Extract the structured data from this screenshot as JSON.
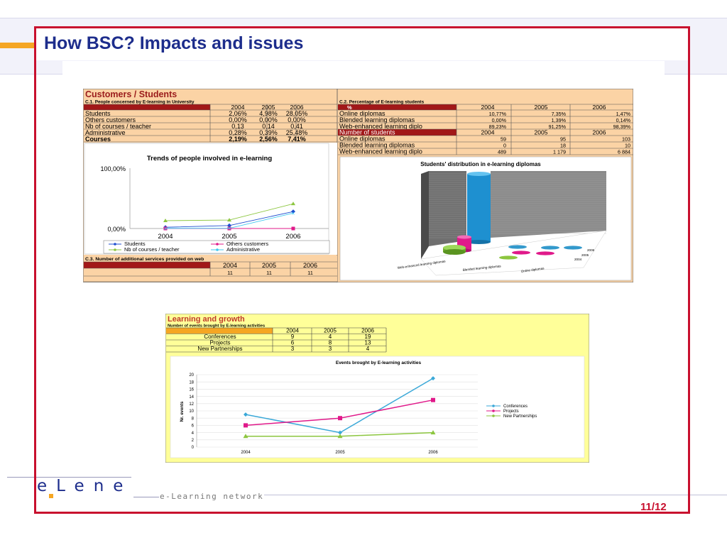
{
  "slide": {
    "title": "How BSC? Impacts and issues",
    "page": "11/12",
    "logo": {
      "text": "eLene",
      "tagline": "e-Learning network"
    }
  },
  "customers": {
    "heading": "Customers / Students",
    "c1_title": "C.1. People concerned by E-learning in University",
    "c1_years": [
      "2004",
      "2005",
      "2006"
    ],
    "c1_rows": [
      {
        "label": "Students",
        "values": [
          "2,06%",
          "4,98%",
          "28,05%"
        ]
      },
      {
        "label": "Others customers",
        "values": [
          "0,00%",
          "0,00%",
          "0,00%"
        ]
      },
      {
        "label": "Nb of courses / teacher",
        "values": [
          "0,13",
          "0,14",
          "0,41"
        ]
      },
      {
        "label": "Administrative",
        "values": [
          "0,28%",
          "0,39%",
          "25,48%"
        ]
      },
      {
        "label": "Courses",
        "values": [
          "2,19%",
          "2,56%",
          "7,41%"
        ]
      }
    ],
    "c2_title": "C.2. Percentage of E-learning students",
    "c2_header": [
      "%",
      "2004",
      "2005",
      "2006"
    ],
    "c2_rows": [
      {
        "label": "Online diplomas",
        "values": [
          "10,77%",
          "7,35%",
          "1,47%"
        ]
      },
      {
        "label": "Blended learning diplomas",
        "values": [
          "0,00%",
          "1,39%",
          "0,14%"
        ]
      },
      {
        "label": "Web-enhanced learning diplo",
        "values": [
          "89,23%",
          "91,25%",
          "98,39%"
        ]
      }
    ],
    "c2_count_header": [
      "Number of students",
      "2004",
      "2005",
      "2006"
    ],
    "c2_count_rows": [
      {
        "label": "Online  diplomas",
        "values": [
          "59",
          "95",
          "103"
        ]
      },
      {
        "label": "Blended learning diplomas",
        "values": [
          "0",
          "18",
          "10"
        ]
      },
      {
        "label": "Web-enhanced learning diplo",
        "values": [
          "489",
          "1 179",
          "6 884"
        ]
      }
    ],
    "c3_title": "C.3. Number of additional services provided on web",
    "c3_years": [
      "2004",
      "2005",
      "2006"
    ],
    "c3_values": [
      "11",
      "11",
      "11"
    ]
  },
  "growth": {
    "heading": "Learning and growth",
    "subtitle": "Number of events brought by E-learning activities",
    "years": [
      "2004",
      "2005",
      "2006"
    ],
    "rows": [
      {
        "label": "Conferences",
        "values": [
          "9",
          "4",
          "19"
        ]
      },
      {
        "label": "Projects",
        "values": [
          "6",
          "8",
          "13"
        ]
      },
      {
        "label": "New Partnerships",
        "values": [
          "3",
          "3",
          "4"
        ]
      }
    ]
  },
  "chart_data": [
    {
      "type": "line",
      "title": "Trends of people involved in e-learning",
      "categories": [
        "2004",
        "2005",
        "2006"
      ],
      "y_tick_labels": [
        "100,00%",
        "0,00%"
      ],
      "ylim": [
        0,
        100
      ],
      "series": [
        {
          "name": "Students",
          "values": [
            2.06,
            4.98,
            28.05
          ],
          "color": "#1f4fd0"
        },
        {
          "name": "Others customers",
          "values": [
            0,
            0,
            0
          ],
          "color": "#e0198a"
        },
        {
          "name": "Nb of courses / teacher",
          "values": [
            13,
            14,
            41
          ],
          "color": "#8cc63f"
        },
        {
          "name": "Administrative",
          "values": [
            0.28,
            0.39,
            25.48
          ],
          "color": "#3fc8f0"
        }
      ],
      "legend": "bottom"
    },
    {
      "type": "bar",
      "title": "Students' distribution in e-learning diplomas",
      "categories": [
        "Web-enhanced learning diplomas",
        "Blended learning diplomas",
        "Online  diplomas"
      ],
      "series": [
        {
          "name": "2006",
          "values": [
            6884,
            10,
            103
          ]
        },
        {
          "name": "2005",
          "values": [
            1179,
            18,
            95
          ]
        },
        {
          "name": "2004",
          "values": [
            489,
            0,
            59
          ]
        }
      ],
      "colors": [
        "#9a9a9a",
        "#1e90d0",
        "#e0198a",
        "#8cc63f"
      ]
    },
    {
      "type": "line",
      "title": "Events brought by E-learning activities",
      "categories": [
        "2004",
        "2005",
        "2006"
      ],
      "ylabel": "Nr. events",
      "ylim": [
        0,
        20
      ],
      "y_ticks": [
        0,
        2,
        4,
        6,
        8,
        10,
        12,
        14,
        16,
        18,
        20
      ],
      "grid": true,
      "series": [
        {
          "name": "Conferences",
          "values": [
            9,
            4,
            19
          ],
          "color": "#3aa8d8"
        },
        {
          "name": "Projects",
          "values": [
            6,
            8,
            13
          ],
          "color": "#e0198a"
        },
        {
          "name": "New Partnerships",
          "values": [
            3,
            3,
            4
          ],
          "color": "#8cc63f"
        }
      ],
      "legend": "right"
    }
  ]
}
